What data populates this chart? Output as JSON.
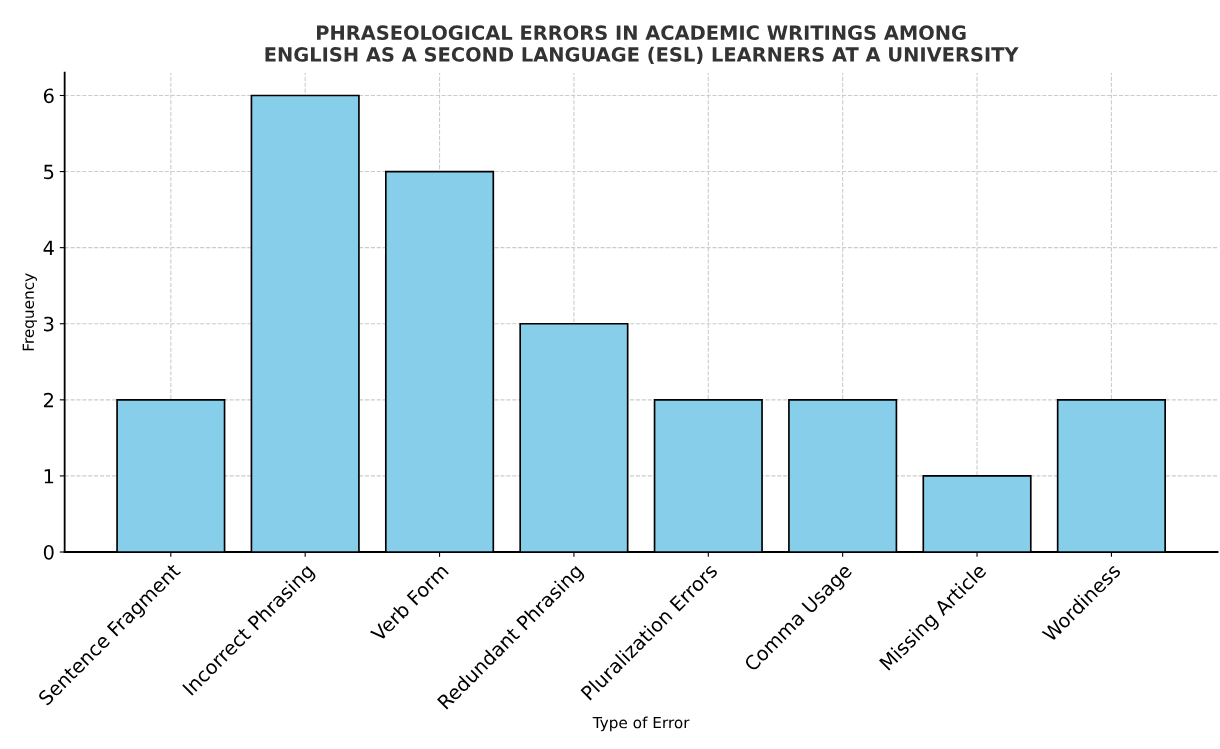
{
  "chart_data": {
    "type": "bar",
    "title": "PHRASEOLOGICAL ERRORS IN ACADEMIC WRITINGS AMONG\nENGLISH AS A SECOND LANGUAGE (ESL) LEARNERS AT A UNIVERSITY",
    "xlabel": "Type of Error",
    "ylabel": "Frequency",
    "categories": [
      "Sentence Fragment",
      "Incorrect Phrasing",
      "Verb Form",
      "Redundant Phrasing",
      "Pluralization Errors",
      "Comma Usage",
      "Missing Article",
      "Wordiness"
    ],
    "values": [
      2,
      6,
      5,
      3,
      2,
      2,
      1,
      2
    ],
    "color": "#87ceeb",
    "ylim": [
      0,
      6.3
    ],
    "yticks": [
      0,
      1,
      2,
      3,
      4,
      5,
      6
    ],
    "grid": true
  }
}
